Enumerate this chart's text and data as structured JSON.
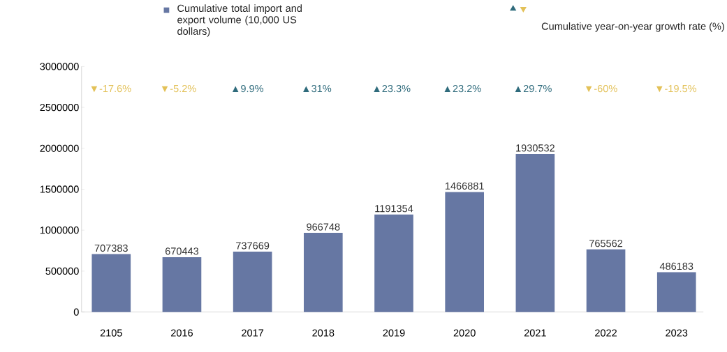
{
  "chart_data": {
    "type": "bar",
    "categories": [
      "2105",
      "2016",
      "2017",
      "2018",
      "2019",
      "2020",
      "2021",
      "2022",
      "2023"
    ],
    "series": [
      {
        "name": "Cumulative total import and export volume (10,000 US dollars)",
        "color": "#6677a3",
        "values": [
          707383,
          670443,
          737669,
          966748,
          1191354,
          1466881,
          1930532,
          765562,
          486183
        ]
      }
    ],
    "annotations": [
      "▼-17.6%",
      "▼-5.2%",
      "▲9.9%",
      "▲31%",
      "▲23.3%",
      "▲23.2%",
      "▲29.7%",
      "▼-60%",
      "▼-19.5%",
      "Cumulative year-on-year growth rate (%)"
    ],
    "data_labels": true,
    "ylim": [
      0,
      3000000
    ],
    "yticks": [
      0,
      500000,
      1000000,
      1500000,
      2000000,
      2500000,
      3000000
    ],
    "legend": "top"
  }
}
